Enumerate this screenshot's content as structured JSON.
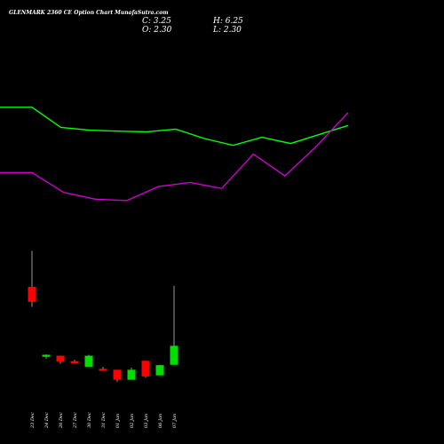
{
  "header": {
    "title": "GLENMARK 2360  CE Option  Chart MunafaSutra.com",
    "close_label": "C: 3.25",
    "high_label": "H: 6.25",
    "open_label": "O: 2.30",
    "low_label": "L: 2.30"
  },
  "colors": {
    "background": "#000000",
    "bullish": "#00dd00",
    "bearish": "#ff0000",
    "ma_fast": "#00ff00",
    "ma_slow": "#cc00cc",
    "wick": "#ffffff",
    "text": "#ffffff"
  },
  "chart_data": {
    "type": "candlestick",
    "categories": [
      "23 Dec",
      "24 Dec",
      "26 Dec",
      "27 Dec",
      "30 Dec",
      "31 Dec",
      "01 Jan",
      "02 Jan",
      "03 Jan",
      "06 Jan",
      "07 Jan"
    ],
    "candles": [
      {
        "open": 6.2,
        "high": 8.0,
        "low": 5.2,
        "close": 5.45
      },
      {
        "open": 2.7,
        "high": 2.82,
        "low": 2.6,
        "close": 2.8
      },
      {
        "open": 2.75,
        "high": 2.75,
        "low": 2.35,
        "close": 2.47
      },
      {
        "open": 2.48,
        "high": 2.55,
        "low": 2.37,
        "close": 2.38
      },
      {
        "open": 2.2,
        "high": 2.8,
        "low": 2.2,
        "close": 2.75
      },
      {
        "open": 2.1,
        "high": 2.2,
        "low": 1.98,
        "close": 2.0
      },
      {
        "open": 2.05,
        "high": 2.05,
        "low": 1.45,
        "close": 1.55
      },
      {
        "open": 1.55,
        "high": 2.15,
        "low": 1.55,
        "close": 2.05
      },
      {
        "open": 2.5,
        "high": 2.5,
        "low": 1.65,
        "close": 1.72
      },
      {
        "open": 1.77,
        "high": 2.3,
        "low": 1.77,
        "close": 2.28
      },
      {
        "open": 2.3,
        "high": 6.25,
        "low": 2.3,
        "close": 3.25
      }
    ],
    "ma_fast": [
      20.66,
      20.66,
      18.94,
      18.7,
      18.61,
      18.56,
      18.79,
      17.98,
      17.4,
      18.09,
      17.56,
      18.33,
      19.1
    ],
    "ma_slow": [
      15.07,
      15.07,
      13.37,
      12.79,
      12.67,
      13.87,
      14.23,
      13.7,
      16.65,
      14.78,
      17.33,
      20.2
    ],
    "price_range": [
      1.0,
      9.0
    ],
    "indicator_range": [
      10.0,
      23.0
    ]
  }
}
